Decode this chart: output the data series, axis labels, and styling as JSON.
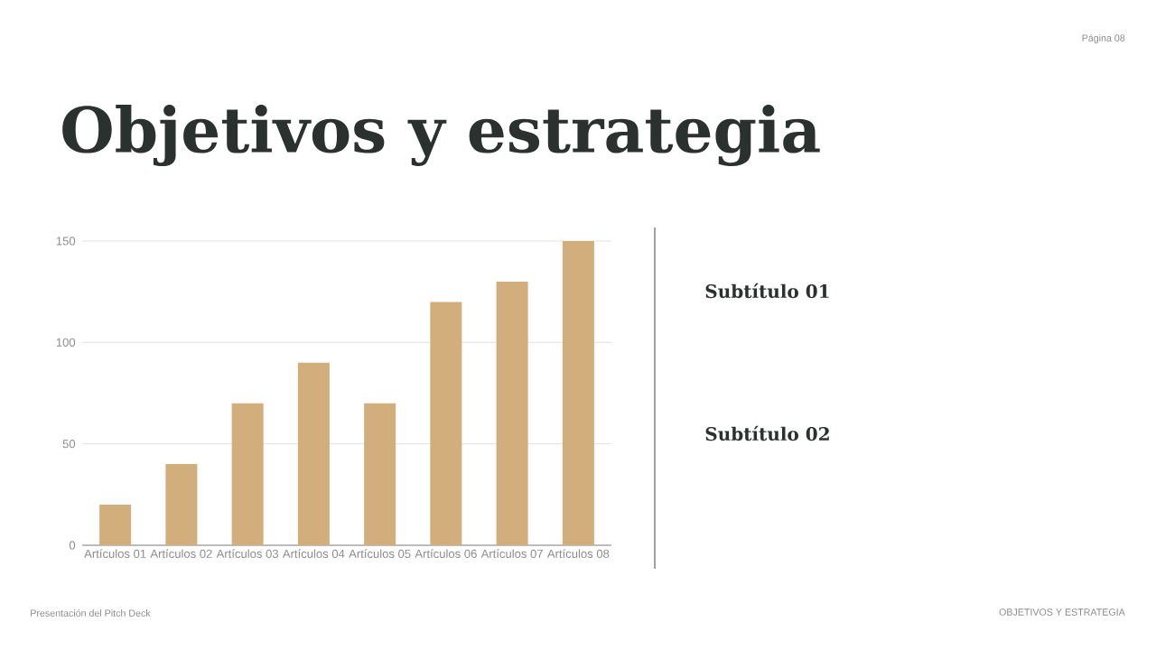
{
  "chart_data": {
    "type": "bar",
    "title": "Objetivos y estrategia",
    "annotations": [
      "Página 08",
      "Subtítulo 01",
      "Subtítulo 02",
      "Presentación del Pitch Deck",
      "OBJETIVOS Y ESTRATEGIA"
    ],
    "categories": [
      "Artículos 01",
      "Artículos 02",
      "Artículos 03",
      "Artículos 04",
      "Artículos 05",
      "Artículos 06",
      "Artículos 07",
      "Artículos 08"
    ],
    "values": [
      20,
      40,
      70,
      90,
      70,
      120,
      130,
      150
    ],
    "color": "#d2ae7c",
    "ylim": [
      0,
      150
    ],
    "yticks": [
      0,
      50,
      100,
      150
    ],
    "grid": "y"
  }
}
